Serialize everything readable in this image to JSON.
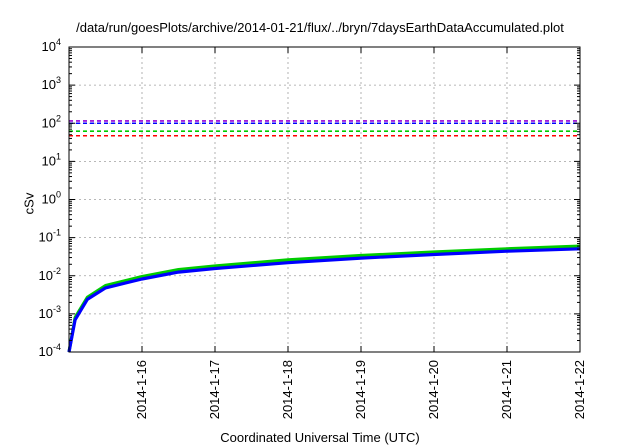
{
  "chart_data": {
    "type": "line",
    "title": "/data/run/goesPlots/archive/2014-01-21/flux/../bryn/7daysEarthDataAccumulated.plot",
    "xlabel": "Coordinated Universal Time (UTC)",
    "ylabel": "cSv",
    "x_scale": "time",
    "xlim": [
      "2014-01-15T00:00",
      "2014-01-22T00:00"
    ],
    "x_ticks": [
      "2014-1-16",
      "2014-1-17",
      "2014-1-18",
      "2014-1-19",
      "2014-1-20",
      "2014-1-21",
      "2014-1-22"
    ],
    "y_scale": "log",
    "ylim": [
      0.0001,
      10000
    ],
    "y_ticks": [
      0.0001,
      0.001,
      0.01,
      0.1,
      1,
      10,
      100,
      1000,
      10000
    ],
    "grid": true,
    "series": [
      {
        "color": "#00cc00",
        "style": "solid",
        "x": [
          "2014-01-15T00:00",
          "2014-01-15T02:00",
          "2014-01-15T06:00",
          "2014-01-15T12:00",
          "2014-01-16T00:00",
          "2014-01-16T12:00",
          "2014-01-17T00:00",
          "2014-01-18T00:00",
          "2014-01-19T00:00",
          "2014-01-20T00:00",
          "2014-01-21T00:00",
          "2014-01-22T00:00"
        ],
        "y": [
          0.0001,
          0.0008,
          0.0027,
          0.0055,
          0.0095,
          0.0145,
          0.018,
          0.026,
          0.034,
          0.042,
          0.051,
          0.06
        ]
      },
      {
        "color": "#0000ff",
        "style": "solid",
        "x": [
          "2014-01-15T00:00",
          "2014-01-15T02:00",
          "2014-01-15T06:00",
          "2014-01-15T12:00",
          "2014-01-16T00:00",
          "2014-01-16T12:00",
          "2014-01-17T00:00",
          "2014-01-18T00:00",
          "2014-01-19T00:00",
          "2014-01-20T00:00",
          "2014-01-21T00:00",
          "2014-01-22T00:00"
        ],
        "y": [
          0.0001,
          0.0007,
          0.0024,
          0.0048,
          0.0082,
          0.0125,
          0.0155,
          0.022,
          0.029,
          0.036,
          0.044,
          0.051
        ]
      },
      {
        "color": "#9400d3",
        "style": "dashed",
        "constant": 115
      },
      {
        "color": "#0000ff",
        "style": "dashed",
        "constant": 100
      },
      {
        "color": "#00cc00",
        "style": "dashed",
        "constant": 62
      },
      {
        "color": "#ff0000",
        "style": "dashed",
        "constant": 47
      }
    ]
  }
}
